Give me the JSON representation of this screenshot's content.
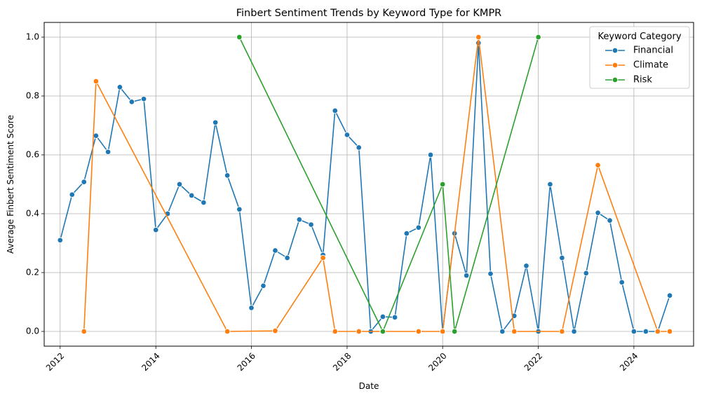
{
  "chart_data": {
    "type": "line",
    "title": "Finbert Sentiment Trends by Keyword Type for KMPR",
    "xlabel": "Date",
    "ylabel": "Average Finbert Sentiment Score",
    "x_ticks": [
      "2012",
      "2014",
      "2016",
      "2018",
      "2020",
      "2022",
      "2024"
    ],
    "y_ticks": [
      "0.0",
      "0.2",
      "0.4",
      "0.6",
      "0.8",
      "1.0"
    ],
    "xlim": [
      "2011-09-01",
      "2025-04-01"
    ],
    "ylim": [
      -0.05,
      1.05
    ],
    "grid": true,
    "legend": {
      "title": "Keyword Category",
      "placement": "top-right"
    },
    "series": [
      {
        "name": "Financial",
        "color": "#1f77b4",
        "points": [
          [
            "2012-01-01",
            0.31
          ],
          [
            "2012-04-01",
            0.465
          ],
          [
            "2012-07-01",
            0.508
          ],
          [
            "2012-10-01",
            0.665
          ],
          [
            "2013-01-01",
            0.61
          ],
          [
            "2013-04-01",
            0.83
          ],
          [
            "2013-07-01",
            0.78
          ],
          [
            "2013-10-01",
            0.79
          ],
          [
            "2014-01-01",
            0.345
          ],
          [
            "2014-04-01",
            0.4
          ],
          [
            "2014-07-01",
            0.5
          ],
          [
            "2014-10-01",
            0.462
          ],
          [
            "2015-01-01",
            0.438
          ],
          [
            "2015-04-01",
            0.71
          ],
          [
            "2015-07-01",
            0.53
          ],
          [
            "2015-10-01",
            0.415
          ],
          [
            "2016-01-01",
            0.08
          ],
          [
            "2016-04-01",
            0.155
          ],
          [
            "2016-07-01",
            0.275
          ],
          [
            "2016-10-01",
            0.25
          ],
          [
            "2017-01-01",
            0.38
          ],
          [
            "2017-04-01",
            0.363
          ],
          [
            "2017-07-01",
            0.26
          ],
          [
            "2017-10-01",
            0.75
          ],
          [
            "2018-01-01",
            0.668
          ],
          [
            "2018-04-01",
            0.625
          ],
          [
            "2018-07-01",
            0.0
          ],
          [
            "2018-10-01",
            0.05
          ],
          [
            "2019-01-01",
            0.048
          ],
          [
            "2019-04-01",
            0.333
          ],
          [
            "2019-07-01",
            0.353
          ],
          [
            "2019-10-01",
            0.6
          ],
          [
            "2020-01-01",
            0.0
          ],
          [
            "2020-04-01",
            0.333
          ],
          [
            "2020-07-01",
            0.19
          ],
          [
            "2020-10-01",
            0.98
          ],
          [
            "2021-01-01",
            0.196
          ],
          [
            "2021-04-01",
            0.0
          ],
          [
            "2021-07-01",
            0.053
          ],
          [
            "2021-10-01",
            0.223
          ],
          [
            "2022-01-01",
            0.0
          ],
          [
            "2022-04-01",
            0.5
          ],
          [
            "2022-07-01",
            0.25
          ],
          [
            "2022-10-01",
            0.0
          ],
          [
            "2023-01-01",
            0.198
          ],
          [
            "2023-04-01",
            0.403
          ],
          [
            "2023-07-01",
            0.377
          ],
          [
            "2023-10-01",
            0.167
          ],
          [
            "2024-01-01",
            0.0
          ],
          [
            "2024-04-01",
            0.0
          ],
          [
            "2024-07-01",
            0.0
          ],
          [
            "2024-10-01",
            0.122
          ]
        ]
      },
      {
        "name": "Climate",
        "color": "#ff7f0e",
        "points": [
          [
            "2012-07-01",
            0.0
          ],
          [
            "2012-10-01",
            0.85
          ],
          [
            "2015-07-01",
            0.0
          ],
          [
            "2016-07-01",
            0.002
          ],
          [
            "2017-07-01",
            0.25
          ],
          [
            "2017-10-01",
            0.0
          ],
          [
            "2018-04-01",
            0.0
          ],
          [
            "2018-10-01",
            0.0
          ],
          [
            "2019-07-01",
            0.0
          ],
          [
            "2020-01-01",
            0.0
          ],
          [
            "2020-10-01",
            1.0
          ],
          [
            "2021-07-01",
            0.0
          ],
          [
            "2022-07-01",
            0.0
          ],
          [
            "2023-04-01",
            0.565
          ],
          [
            "2024-07-01",
            0.0
          ],
          [
            "2024-10-01",
            0.0
          ]
        ]
      },
      {
        "name": "Risk",
        "color": "#2ca02c",
        "points": [
          [
            "2015-10-01",
            1.0
          ],
          [
            "2018-10-01",
            0.0
          ],
          [
            "2020-01-01",
            0.5
          ],
          [
            "2020-04-01",
            0.0
          ],
          [
            "2022-01-01",
            1.0
          ]
        ]
      }
    ]
  }
}
